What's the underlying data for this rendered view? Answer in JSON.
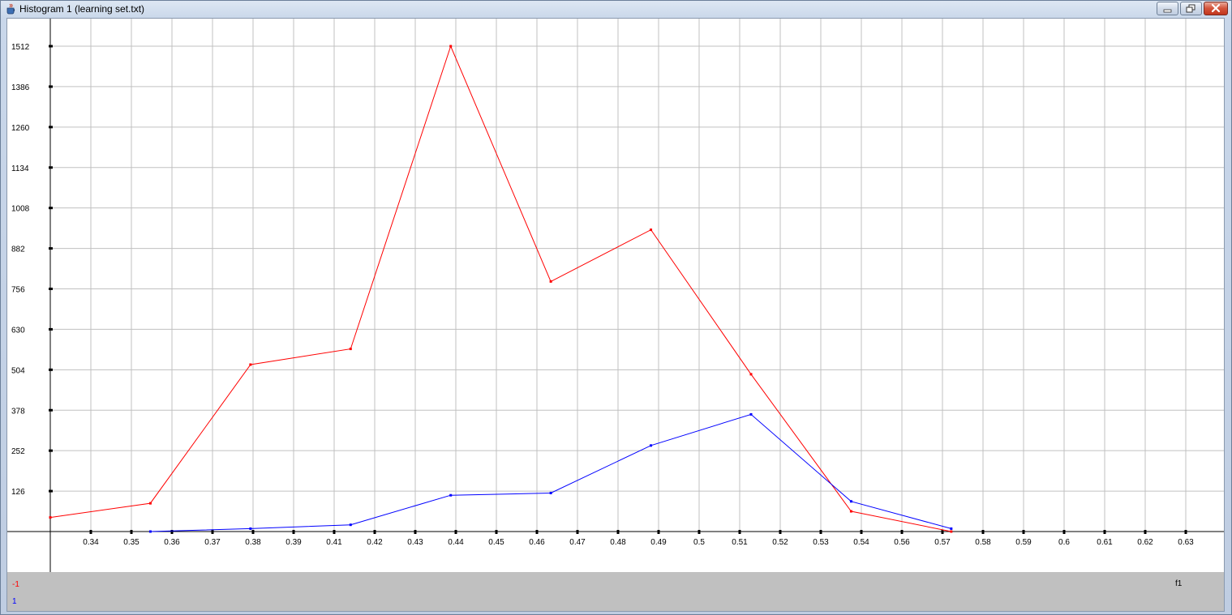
{
  "window": {
    "title": "Histogram 1 (learning set.txt)",
    "icons": [
      "java-cup-icon",
      "minimize-icon",
      "restore-icon",
      "close-icon"
    ]
  },
  "chart_data": {
    "type": "line",
    "title": "",
    "xlabel": "f1",
    "ylabel": "",
    "grid": true,
    "xlim": [
      0.325,
      0.6426
    ],
    "ylim": [
      0,
      1512
    ],
    "x_ticks": [
      "0.34",
      "0.35",
      "0.36",
      "0.37",
      "0.38",
      "0.39",
      "0.41",
      "0.42",
      "0.43",
      "0.44",
      "0.45",
      "0.46",
      "0.47",
      "0.48",
      "0.49",
      "0.5",
      "0.51",
      "0.52",
      "0.53",
      "0.54",
      "0.56",
      "0.57",
      "0.58",
      "0.59",
      "0.6",
      "0.61",
      "0.62",
      "0.63"
    ],
    "y_ticks": [
      "126",
      "252",
      "378",
      "504",
      "630",
      "756",
      "882",
      "1008",
      "1134",
      "1260",
      "1386",
      "1512"
    ],
    "series": [
      {
        "name": "-1",
        "color": "#ff0000",
        "x": [
          0.325,
          0.353,
          0.381,
          0.409,
          0.437,
          0.465,
          0.493,
          0.521,
          0.549,
          0.577
        ],
        "y": [
          44,
          88,
          520,
          569,
          1512,
          779,
          940,
          490,
          63,
          0
        ]
      },
      {
        "name": "1",
        "color": "#0000ff",
        "x": [
          0.353,
          0.381,
          0.409,
          0.437,
          0.465,
          0.493,
          0.521,
          0.549,
          0.577
        ],
        "y": [
          0,
          9,
          21,
          113,
          120,
          268,
          365,
          94,
          9
        ]
      }
    ]
  }
}
